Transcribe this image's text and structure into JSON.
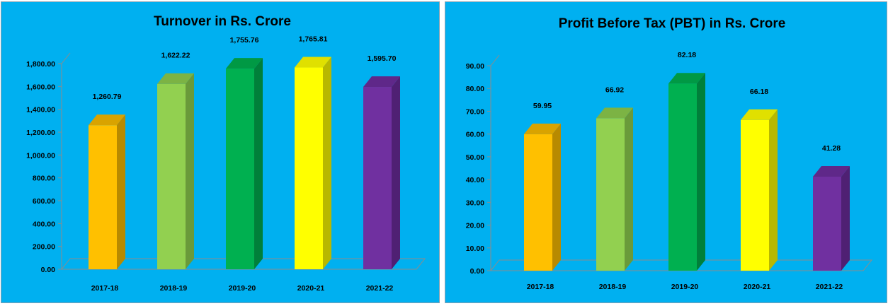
{
  "chart_data": [
    {
      "type": "bar",
      "title": "Turnover in Rs. Crore",
      "categories": [
        "2017-18",
        "2018-19",
        "2019-20",
        "2020-21",
        "2021-22"
      ],
      "values": [
        1260.79,
        1622.22,
        1755.76,
        1765.81,
        1595.7
      ],
      "value_labels": [
        "1,260.79",
        "1,622.22",
        "1,755.76",
        "1,765.81",
        "1,595.70"
      ],
      "yticks": [
        "0.00",
        "200.00",
        "400.00",
        "600.00",
        "800.00",
        "1,000.00",
        "1,200.00",
        "1,400.00",
        "1,600.00",
        "1,800.00"
      ],
      "ylim": [
        0,
        1800
      ],
      "xlabel": "",
      "ylabel": "",
      "grid": false,
      "legend": "none",
      "style": "3d-column",
      "bar_colors": [
        "#ffc000",
        "#92d050",
        "#00b050",
        "#ffff00",
        "#7030a0"
      ],
      "side_colors": [
        "#b88a00",
        "#6a9a3a",
        "#00803a",
        "#b8b800",
        "#4f2073"
      ],
      "top_colors": [
        "#d9a300",
        "#7cb344",
        "#009944",
        "#e0e000",
        "#5f2889"
      ],
      "background": "#00b0f0"
    },
    {
      "type": "bar",
      "title": "Profit Before Tax (PBT) in Rs. Crore",
      "categories": [
        "2017-18",
        "2018-19",
        "2019-20",
        "2020-21",
        "2021-22"
      ],
      "values": [
        59.95,
        66.92,
        82.18,
        66.18,
        41.28
      ],
      "value_labels": [
        "59.95",
        "66.92",
        "82.18",
        "66.18",
        "41.28"
      ],
      "yticks": [
        "0.00",
        "10.00",
        "20.00",
        "30.00",
        "40.00",
        "50.00",
        "60.00",
        "70.00",
        "80.00",
        "90.00"
      ],
      "ylim": [
        0,
        90
      ],
      "xlabel": "",
      "ylabel": "",
      "grid": false,
      "legend": "none",
      "style": "3d-column",
      "bar_colors": [
        "#ffc000",
        "#92d050",
        "#00b050",
        "#ffff00",
        "#7030a0"
      ],
      "side_colors": [
        "#b88a00",
        "#6a9a3a",
        "#00803a",
        "#b8b800",
        "#4f2073"
      ],
      "top_colors": [
        "#d9a300",
        "#7cb344",
        "#009944",
        "#e0e000",
        "#5f2889"
      ],
      "background": "#00b0f0"
    }
  ]
}
